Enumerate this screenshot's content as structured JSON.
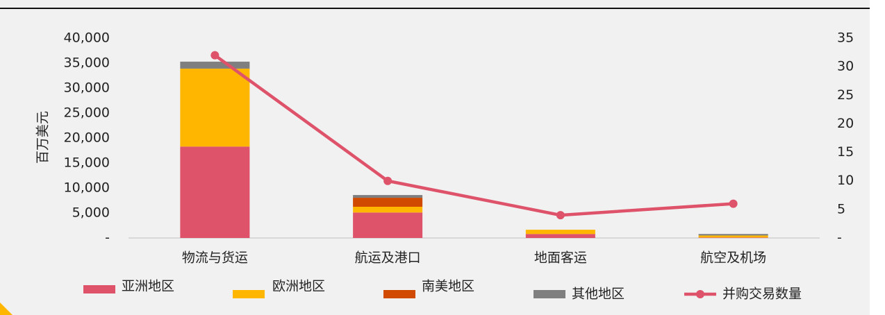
{
  "chart_data": {
    "type": "bar",
    "stacked": true,
    "y_label": "百万美元",
    "categories": [
      "物流与货运",
      "航运及港口",
      "地面客运",
      "航空及机场"
    ],
    "series": [
      {
        "name": "亚洲地区",
        "color": "#de526a",
        "values": [
          18300,
          5100,
          800,
          100
        ]
      },
      {
        "name": "欧洲地区",
        "color": "#ffb600",
        "values": [
          15600,
          1150,
          850,
          400
        ]
      },
      {
        "name": "南美地区",
        "color": "#d04a02",
        "values": [
          0,
          1800,
          0,
          0
        ]
      },
      {
        "name": "其他地区",
        "color": "#7f7f7f",
        "values": [
          1400,
          550,
          0,
          300
        ]
      },
      {
        "name": "并购交易数量",
        "color": "#de526a",
        "type": "line",
        "axis": "y2",
        "values": [
          32,
          10,
          4,
          6
        ]
      }
    ],
    "ylim": [
      0,
      40000
    ],
    "yticks": [
      {
        "value": 0,
        "label": "-"
      },
      {
        "value": 5000,
        "label": "5,000"
      },
      {
        "value": 10000,
        "label": "10,000"
      },
      {
        "value": 15000,
        "label": "15,000"
      },
      {
        "value": 20000,
        "label": "20,000"
      },
      {
        "value": 25000,
        "label": "25,000"
      },
      {
        "value": 30000,
        "label": "30,000"
      },
      {
        "value": 35000,
        "label": "35,000"
      },
      {
        "value": 40000,
        "label": "40,000"
      }
    ],
    "y2lim": [
      0,
      35
    ],
    "y2ticks": [
      {
        "value": 0,
        "label": "-"
      },
      5,
      10,
      15,
      20,
      25,
      30,
      35
    ]
  }
}
